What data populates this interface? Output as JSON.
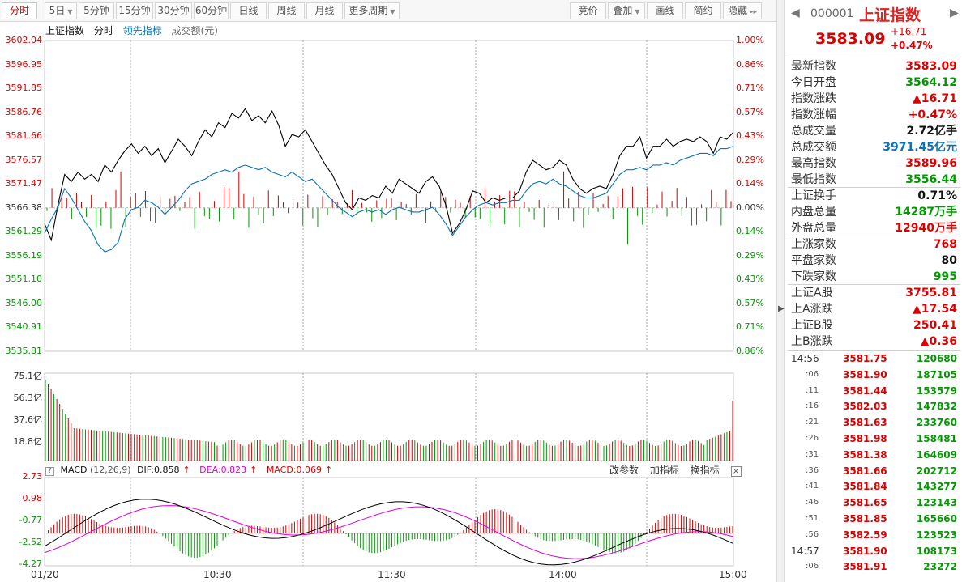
{
  "toolbar": {
    "left_tabs": [
      {
        "label": "分时",
        "active": true
      },
      {
        "label": "5日",
        "caret": true
      },
      {
        "label": "5分钟"
      },
      {
        "label": "15分钟"
      },
      {
        "label": "30分钟"
      },
      {
        "label": "60分钟"
      },
      {
        "label": "日线"
      },
      {
        "label": "周线"
      },
      {
        "label": "月线"
      },
      {
        "label": "更多周期",
        "caret": true
      }
    ],
    "right_tabs": [
      {
        "label": "竞价"
      },
      {
        "label": "叠加",
        "caret": true
      },
      {
        "label": "画线"
      },
      {
        "label": "简约"
      },
      {
        "label": "隐藏",
        "arrow": "▸▸"
      }
    ]
  },
  "legend": {
    "name": "上证指数",
    "mode": "分时",
    "lead": "领先指标",
    "amount": "成交额(元)"
  },
  "price_axis": {
    "left": [
      "3602.04",
      "3596.95",
      "3591.85",
      "3586.76",
      "3581.66",
      "3576.57",
      "3571.47",
      "3566.38",
      "3561.29",
      "3556.19",
      "3551.10",
      "3546.00",
      "3540.91",
      "3535.81"
    ],
    "right": [
      "1.00%",
      "0.86%",
      "0.71%",
      "0.57%",
      "0.43%",
      "0.29%",
      "0.14%",
      "0.00%",
      "0.14%",
      "0.29%",
      "0.43%",
      "0.57%",
      "0.71%",
      "0.86%"
    ]
  },
  "volume_axis": [
    "75.1亿",
    "56.3亿",
    "37.6亿",
    "18.8亿"
  ],
  "macd": {
    "title": "MACD",
    "params": "(12,26,9)",
    "dif": "DIF:0.858",
    "dea": "DEA:0.823",
    "macd": "MACD:0.069",
    "up_arrow": "↑",
    "axis": [
      "2.73",
      "0.98",
      "-0.77",
      "-2.52",
      "-4.27"
    ],
    "tools": [
      "改参数",
      "加指标",
      "换指标"
    ],
    "close": "×"
  },
  "time_axis": [
    "01/20",
    "10:30",
    "11:30",
    "14:00",
    "15:00"
  ],
  "colors": {
    "up": "#d00000",
    "down": "#009900",
    "price": "#000000",
    "lead": "#0a72b8",
    "dea": "#dd00dd"
  },
  "chart_data": {
    "type": "line",
    "series": [
      {
        "name": "上证指数",
        "values": [
          3563.0,
          3559.5,
          3567.0,
          3573.5,
          3572.0,
          3574.0,
          3572.5,
          3573.5,
          3572.0,
          3575.5,
          3574.0,
          3576.5,
          3578.5,
          3580.0,
          3578.0,
          3579.5,
          3577.5,
          3579.0,
          3576.0,
          3578.5,
          3581.0,
          3579.5,
          3577.5,
          3580.5,
          3583.0,
          3581.5,
          3584.5,
          3583.5,
          3586.5,
          3585.5,
          3587.5,
          3585.0,
          3586.0,
          3584.5,
          3587.0,
          3584.0,
          3579.5,
          3582.0,
          3581.5,
          3583.0,
          3580.5,
          3578.0,
          3575.5,
          3573.5,
          3570.5,
          3567.5,
          3566.0,
          3568.5,
          3568.0,
          3569.0,
          3568.5,
          3571.0,
          3569.5,
          3572.5,
          3571.5,
          3570.5,
          3569.5,
          3572.0,
          3573.0,
          3571.0,
          3567.0,
          3561.0,
          3563.0,
          3566.0,
          3570.0,
          3569.5,
          3567.5,
          3568.5,
          3568.0,
          3568.5,
          3568.5,
          3570.0,
          3574.0,
          3576.5,
          3575.5,
          3574.5,
          3575.0,
          3576.5,
          3575.5,
          3572.5,
          3570.5,
          3569.5,
          3570.5,
          3571.0,
          3570.5,
          3573.5,
          3577.5,
          3579.5,
          3579.5,
          3581.5,
          3577.0,
          3579.5,
          3579.5,
          3581.0,
          3579.5,
          3580.5,
          3581.0,
          3580.5,
          3581.5,
          3580.5,
          3578.0,
          3581.5,
          3581.0,
          3582.5
        ]
      },
      {
        "name": "领先指标",
        "values": [
          3561.0,
          3564.0,
          3566.5,
          3570.5,
          3568.5,
          3566.0,
          3563.5,
          3561.5,
          3558.5,
          3557.0,
          3557.5,
          3559.0,
          3564.0,
          3566.0,
          3566.5,
          3568.0,
          3567.5,
          3566.5,
          3565.0,
          3566.5,
          3568.0,
          3570.0,
          3571.5,
          3572.0,
          3572.5,
          3573.5,
          3574.0,
          3574.5,
          3574.0,
          3575.0,
          3575.5,
          3575.0,
          3574.5,
          3575.0,
          3574.0,
          3573.5,
          3573.0,
          3574.0,
          3573.0,
          3572.0,
          3572.5,
          3571.0,
          3569.5,
          3568.0,
          3566.5,
          3565.5,
          3564.5,
          3565.5,
          3566.0,
          3565.5,
          3566.0,
          3565.0,
          3566.0,
          3566.5,
          3566.0,
          3565.5,
          3565.5,
          3566.0,
          3566.5,
          3565.0,
          3563.0,
          3560.5,
          3562.5,
          3564.5,
          3566.0,
          3567.0,
          3567.5,
          3567.0,
          3567.5,
          3567.5,
          3568.0,
          3568.0,
          3570.0,
          3571.5,
          3572.0,
          3571.5,
          3572.5,
          3571.5,
          3571.0,
          3570.0,
          3569.0,
          3568.5,
          3568.5,
          3569.0,
          3569.5,
          3571.5,
          3573.5,
          3574.5,
          3574.5,
          3575.0,
          3574.5,
          3575.5,
          3575.5,
          3576.0,
          3575.5,
          3576.5,
          3577.0,
          3577.5,
          3578.0,
          3578.0,
          3577.5,
          3579.0,
          3579.0,
          3579.5
        ]
      }
    ],
    "reference": 3566.38,
    "ylim": [
      3535.81,
      3602.04
    ],
    "xlabels": [
      "01/20",
      "10:30",
      "11:30",
      "14:00",
      "15:00"
    ]
  },
  "panel": {
    "nav_prev": "◀",
    "nav_next": "▶",
    "code": "000001",
    "name": "上证指数",
    "price": "3583.09",
    "change": "+16.71",
    "change_pct": "+0.47%",
    "quotes": [
      {
        "k": "最新指数",
        "v": "3583.09",
        "c": "red"
      },
      {
        "k": "今日开盘",
        "v": "3564.12",
        "c": "green"
      },
      {
        "k": "指数涨跌",
        "v": "▲16.71",
        "c": "red"
      },
      {
        "k": "指数涨幅",
        "v": "+0.47%",
        "c": "red"
      },
      {
        "k": "总成交量",
        "v": "2.72亿手",
        "c": "black"
      },
      {
        "k": "总成交额",
        "v": "3971.45亿元",
        "c": "blue"
      },
      {
        "k": "最高指数",
        "v": "3589.96",
        "c": "red"
      },
      {
        "k": "最低指数",
        "v": "3556.44",
        "c": "green"
      },
      {
        "k": "上证换手",
        "v": "0.71%",
        "c": "black"
      },
      {
        "k": "内盘总量",
        "v": "14287万手",
        "c": "green"
      },
      {
        "k": "外盘总量",
        "v": "12940万手",
        "c": "red"
      },
      {
        "k": "上涨家数",
        "v": "768",
        "c": "red"
      },
      {
        "k": "平盘家数",
        "v": "80",
        "c": "black"
      },
      {
        "k": "下跌家数",
        "v": "995",
        "c": "green"
      },
      {
        "k": "上证A股",
        "v": "3755.81",
        "c": "red"
      },
      {
        "k": "上A涨跌",
        "v": "▲17.54",
        "c": "red"
      },
      {
        "k": "上证B股",
        "v": "250.41",
        "c": "red"
      },
      {
        "k": "上B涨跌",
        "v": "▲0.36",
        "c": "red"
      }
    ],
    "ticks": [
      {
        "t": "14:56",
        "p": "3581.75",
        "vol": "120680",
        "small": false
      },
      {
        "t": ":06",
        "p": "3581.90",
        "vol": "187105",
        "small": true
      },
      {
        "t": ":11",
        "p": "3581.44",
        "vol": "153579",
        "small": true
      },
      {
        "t": ":16",
        "p": "3582.03",
        "vol": "147832",
        "small": true
      },
      {
        "t": ":21",
        "p": "3581.63",
        "vol": "233760",
        "small": true
      },
      {
        "t": ":26",
        "p": "3581.98",
        "vol": "158481",
        "small": true
      },
      {
        "t": ":31",
        "p": "3581.38",
        "vol": "164609",
        "small": true
      },
      {
        "t": ":36",
        "p": "3581.66",
        "vol": "202712",
        "small": true
      },
      {
        "t": ":41",
        "p": "3581.84",
        "vol": "143277",
        "small": true
      },
      {
        "t": ":46",
        "p": "3581.65",
        "vol": "123143",
        "small": true
      },
      {
        "t": ":51",
        "p": "3581.85",
        "vol": "165660",
        "small": true
      },
      {
        "t": ":56",
        "p": "3582.59",
        "vol": "123523",
        "small": true
      },
      {
        "t": "14:57",
        "p": "3581.90",
        "vol": "108173",
        "small": false
      },
      {
        "t": ":06",
        "p": "3581.91",
        "vol": "23272",
        "small": true
      }
    ]
  }
}
